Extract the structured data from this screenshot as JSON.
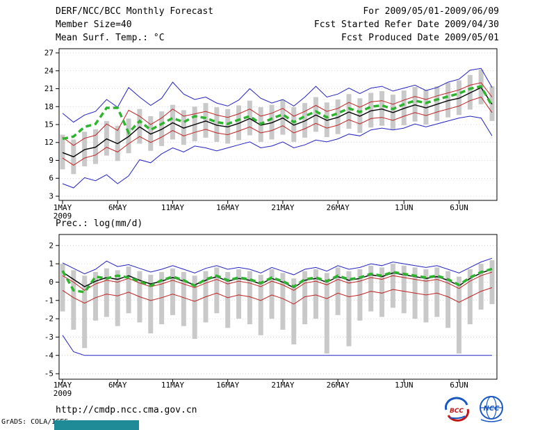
{
  "header": {
    "title": "DERF/NCC/BCC Monthly Forecast",
    "member_size": "Member Size=40",
    "forecast_range": "For 2009/05/01-2009/06/09",
    "refer_date": "Fcst Started Refer Date 2009/04/30",
    "produced_date": "Fcst Produced Date 2009/05/01"
  },
  "footer": {
    "url": "http://cmdp.ncc.cma.gov.cn",
    "credit": "GrADS: COLA/IGES",
    "logos": [
      {
        "label": "BCC",
        "color": "#c01818"
      },
      {
        "label": "NCC",
        "color": "#1a57c0"
      }
    ]
  },
  "colors": {
    "envelope_blue": "#2020c0",
    "quartile_red": "#c02020",
    "mean_black": "#000000",
    "climatology_green": "#2db52d",
    "spread_bar_gray": "#c9c9c9"
  },
  "chart_data": [
    {
      "type": "line",
      "title": "Mean Surf. Temp.: °C",
      "xlabel": "",
      "ylabel": "",
      "ylim": [
        2.3,
        27.7
      ],
      "yticks": [
        3,
        6,
        9,
        12,
        15,
        18,
        21,
        24,
        27
      ],
      "xtick_labels": [
        "1MAY",
        "6MAY",
        "11MAY",
        "16MAY",
        "21MAY",
        "26MAY",
        "1JUN",
        "6JUN"
      ],
      "xtick_indices": [
        0,
        5,
        10,
        15,
        20,
        25,
        31,
        36
      ],
      "x_year": "2009",
      "n_days": 40,
      "grid": true,
      "bars": {
        "name": "ensemble-spread-bar",
        "color": "#c9c9c9",
        "low": [
          7.5,
          6.7,
          8.0,
          8.4,
          9.8,
          8.9,
          10.2,
          11.8,
          10.6,
          11.4,
          12.5,
          11.6,
          12.2,
          12.8,
          12.1,
          11.8,
          12.4,
          13.2,
          12.1,
          12.5,
          13.3,
          12.1,
          12.8,
          13.8,
          12.9,
          13.4,
          14.3,
          13.6,
          14.5,
          14.8,
          14.2,
          14.9,
          15.5,
          15.0,
          15.6,
          16.2,
          16.6,
          17.5,
          18.4,
          15.6
        ],
        "high": [
          13.3,
          12.5,
          13.8,
          14.2,
          15.6,
          14.8,
          16.0,
          17.6,
          16.4,
          17.2,
          18.3,
          17.4,
          18.0,
          18.6,
          17.9,
          17.6,
          18.2,
          19.0,
          17.9,
          18.3,
          19.1,
          17.9,
          18.6,
          19.6,
          18.7,
          19.2,
          20.1,
          19.4,
          20.3,
          20.6,
          20.0,
          20.7,
          21.3,
          20.8,
          21.4,
          22.0,
          22.4,
          23.3,
          24.2,
          21.4
        ]
      },
      "series": [
        {
          "name": "ensemble-max",
          "color": "#2020c0",
          "width": 1,
          "values": [
            16.9,
            15.4,
            16.6,
            17.2,
            19.2,
            17.9,
            21.2,
            19.6,
            18.2,
            19.4,
            22.1,
            20.1,
            19.2,
            19.6,
            18.6,
            18.1,
            19.1,
            21.0,
            19.4,
            18.6,
            19.2,
            18.1,
            19.6,
            21.4,
            19.6,
            20.1,
            21.1,
            20.2,
            21.1,
            21.4,
            20.6,
            21.1,
            21.6,
            20.7,
            21.2,
            22.1,
            22.6,
            24.1,
            24.4,
            21.2
          ]
        },
        {
          "name": "ensemble-min",
          "color": "#2020c0",
          "width": 1,
          "values": [
            5.1,
            4.4,
            6.1,
            5.6,
            6.6,
            5.1,
            6.4,
            9.1,
            8.6,
            10.1,
            11.1,
            10.4,
            11.4,
            11.1,
            10.6,
            11.1,
            11.6,
            12.1,
            11.1,
            11.4,
            12.1,
            11.1,
            11.6,
            12.4,
            12.1,
            12.6,
            13.4,
            13.1,
            14.1,
            14.4,
            14.1,
            14.4,
            15.1,
            14.6,
            15.1,
            15.6,
            16.1,
            16.4,
            16.1,
            13.1
          ]
        },
        {
          "name": "upper-quartile",
          "color": "#c02020",
          "width": 1,
          "values": [
            12.9,
            11.5,
            12.7,
            13.2,
            15.1,
            14.0,
            17.4,
            16.4,
            15.0,
            16.1,
            17.6,
            16.4,
            16.8,
            17.2,
            16.6,
            16.2,
            16.8,
            17.6,
            16.4,
            16.9,
            17.7,
            16.4,
            17.2,
            18.2,
            17.2,
            17.7,
            18.7,
            17.9,
            18.8,
            19.0,
            18.4,
            19.1,
            19.7,
            19.2,
            19.8,
            20.3,
            20.8,
            21.6,
            22.0,
            19.6
          ]
        },
        {
          "name": "lower-quartile",
          "color": "#c02020",
          "width": 1,
          "values": [
            9.4,
            8.2,
            9.4,
            9.9,
            11.2,
            10.4,
            11.8,
            13.0,
            12.0,
            12.9,
            14.0,
            13.1,
            13.7,
            14.2,
            13.6,
            13.3,
            13.9,
            14.6,
            13.6,
            14.0,
            14.8,
            13.6,
            14.3,
            15.2,
            14.4,
            14.9,
            15.8,
            15.1,
            16.0,
            16.2,
            15.7,
            16.4,
            17.0,
            16.5,
            17.1,
            17.6,
            18.1,
            19.0,
            19.6,
            17.0
          ]
        },
        {
          "name": "ensemble-mean",
          "color": "#000000",
          "width": 1.4,
          "values": [
            10.3,
            9.6,
            10.8,
            11.2,
            12.6,
            11.8,
            13.0,
            14.6,
            13.4,
            14.2,
            15.3,
            14.4,
            15.0,
            15.6,
            14.9,
            14.6,
            15.2,
            16.0,
            14.9,
            15.3,
            16.1,
            14.9,
            15.6,
            16.6,
            15.7,
            16.2,
            17.1,
            16.4,
            17.3,
            17.6,
            17.0,
            17.7,
            18.3,
            17.8,
            18.4,
            19.0,
            19.4,
            20.3,
            21.2,
            18.4
          ]
        },
        {
          "name": "climatology",
          "color": "#2db52d",
          "width": 3.5,
          "dash": "8,5",
          "values": [
            12.6,
            13.0,
            14.6,
            15.1,
            17.8,
            17.8,
            13.6,
            15.6,
            14.1,
            15.1,
            16.1,
            15.4,
            16.4,
            16.1,
            15.4,
            15.1,
            15.8,
            16.4,
            15.1,
            16.0,
            16.7,
            15.4,
            16.4,
            17.2,
            16.2,
            16.9,
            17.7,
            17.1,
            18.0,
            18.2,
            17.6,
            18.4,
            19.0,
            18.6,
            19.2,
            19.7,
            20.2,
            21.0,
            21.4,
            18.1
          ]
        }
      ]
    },
    {
      "type": "line",
      "title": "Prec.: log(mm/d)",
      "xlabel": "",
      "ylabel": "",
      "ylim": [
        -5.3,
        2.6
      ],
      "yticks": [
        -5,
        -4,
        -3,
        -2,
        -1,
        0,
        1,
        2
      ],
      "xtick_labels": [
        "1MAY",
        "6MAY",
        "11MAY",
        "16MAY",
        "21MAY",
        "26MAY",
        "1JUN",
        "6JUN"
      ],
      "xtick_indices": [
        0,
        5,
        10,
        15,
        20,
        25,
        31,
        36
      ],
      "x_year": "2009",
      "n_days": 40,
      "grid": true,
      "bars": {
        "name": "ensemble-spread-bar",
        "color": "#c9c9c9",
        "low": [
          -1.6,
          -2.6,
          -3.6,
          -2.1,
          -1.9,
          -2.4,
          -1.7,
          -2.2,
          -2.8,
          -2.3,
          -1.8,
          -2.4,
          -3.1,
          -2.2,
          -1.7,
          -2.5,
          -2.0,
          -2.3,
          -2.9,
          -2.0,
          -2.6,
          -3.4,
          -2.3,
          -2.0,
          -3.9,
          -1.8,
          -3.5,
          -2.1,
          -1.6,
          -1.9,
          -1.4,
          -1.7,
          -2.0,
          -2.2,
          -1.9,
          -2.5,
          -3.9,
          -2.3,
          -1.5,
          -1.2
        ],
        "high": [
          1.0,
          0.65,
          0.35,
          0.55,
          0.75,
          0.65,
          0.85,
          0.6,
          0.4,
          0.55,
          0.75,
          0.55,
          0.35,
          0.6,
          0.8,
          0.55,
          0.7,
          0.6,
          0.4,
          0.7,
          0.5,
          0.2,
          0.6,
          0.7,
          0.5,
          0.8,
          0.6,
          0.7,
          0.9,
          0.8,
          1.0,
          0.9,
          0.8,
          0.7,
          0.8,
          0.6,
          0.3,
          0.7,
          1.0,
          1.2
        ]
      },
      "series": [
        {
          "name": "ensemble-max",
          "color": "#2020c0",
          "width": 1,
          "values": [
            1.05,
            0.75,
            0.45,
            0.7,
            1.15,
            0.85,
            0.95,
            0.75,
            0.55,
            0.7,
            0.9,
            0.7,
            0.5,
            0.75,
            0.9,
            0.7,
            0.8,
            0.7,
            0.5,
            0.8,
            0.6,
            0.4,
            0.7,
            0.8,
            0.6,
            0.9,
            0.7,
            0.8,
            1.0,
            0.9,
            1.1,
            1.0,
            0.9,
            0.8,
            0.9,
            0.7,
            0.5,
            0.8,
            1.1,
            1.3
          ]
        },
        {
          "name": "ensemble-min",
          "color": "#2020c0",
          "width": 1,
          "values": [
            -2.9,
            -3.8,
            -4,
            -4,
            -4,
            -4,
            -4,
            -4,
            -4,
            -4,
            -4,
            -4,
            -4,
            -4,
            -4,
            -4,
            -4,
            -4,
            -4,
            -4,
            -4,
            -4,
            -4,
            -4,
            -4,
            -4,
            -4,
            -4,
            -4,
            -4,
            -4,
            -4,
            -4,
            -4,
            -4,
            -4,
            -4,
            -4,
            -4,
            -4
          ]
        },
        {
          "name": "upper-quartile",
          "color": "#c02020",
          "width": 1,
          "values": [
            0.35,
            0.0,
            -0.45,
            -0.1,
            0.1,
            0.0,
            0.2,
            -0.05,
            -0.25,
            -0.1,
            0.1,
            -0.1,
            -0.3,
            -0.05,
            0.15,
            -0.1,
            0.05,
            -0.05,
            -0.25,
            0.05,
            -0.15,
            -0.45,
            -0.05,
            0.05,
            -0.15,
            0.15,
            -0.05,
            0.05,
            0.25,
            0.15,
            0.35,
            0.25,
            0.15,
            0.05,
            0.15,
            -0.05,
            -0.35,
            0.05,
            0.35,
            0.55
          ]
        },
        {
          "name": "lower-quartile",
          "color": "#c02020",
          "width": 1,
          "values": [
            -0.45,
            -0.85,
            -1.15,
            -0.85,
            -0.65,
            -0.75,
            -0.55,
            -0.8,
            -1.0,
            -0.85,
            -0.65,
            -0.85,
            -1.05,
            -0.8,
            -0.6,
            -0.85,
            -0.7,
            -0.8,
            -1.0,
            -0.7,
            -0.9,
            -1.2,
            -0.8,
            -0.7,
            -0.9,
            -0.6,
            -0.8,
            -0.7,
            -0.5,
            -0.6,
            -0.4,
            -0.5,
            -0.6,
            -0.7,
            -0.6,
            -0.8,
            -1.1,
            -0.8,
            -0.5,
            -0.3
          ]
        },
        {
          "name": "ensemble-mean",
          "color": "#000000",
          "width": 1.4,
          "values": [
            0.55,
            0.15,
            -0.25,
            0.05,
            0.25,
            0.15,
            0.35,
            0.1,
            -0.1,
            0.05,
            0.25,
            0.05,
            -0.15,
            0.1,
            0.3,
            0.05,
            0.2,
            0.1,
            -0.1,
            0.2,
            0.0,
            -0.3,
            0.1,
            0.2,
            0.0,
            0.3,
            0.1,
            0.2,
            0.4,
            0.3,
            0.5,
            0.4,
            0.3,
            0.2,
            0.3,
            0.1,
            -0.2,
            0.2,
            0.5,
            0.7
          ]
        },
        {
          "name": "climatology",
          "color": "#2db52d",
          "width": 3.5,
          "dash": "8,5",
          "values": [
            0.62,
            -0.45,
            -0.55,
            0.3,
            0.2,
            0.35,
            0.25,
            0.05,
            -0.2,
            0.1,
            0.3,
            0.1,
            -0.2,
            0.15,
            0.35,
            0.1,
            0.25,
            0.15,
            -0.05,
            0.25,
            0.05,
            -0.25,
            0.15,
            0.25,
            0.05,
            0.35,
            0.15,
            0.25,
            0.45,
            0.35,
            0.55,
            0.45,
            0.35,
            0.25,
            0.35,
            0.15,
            -0.15,
            0.25,
            0.55,
            0.72
          ]
        }
      ]
    }
  ]
}
